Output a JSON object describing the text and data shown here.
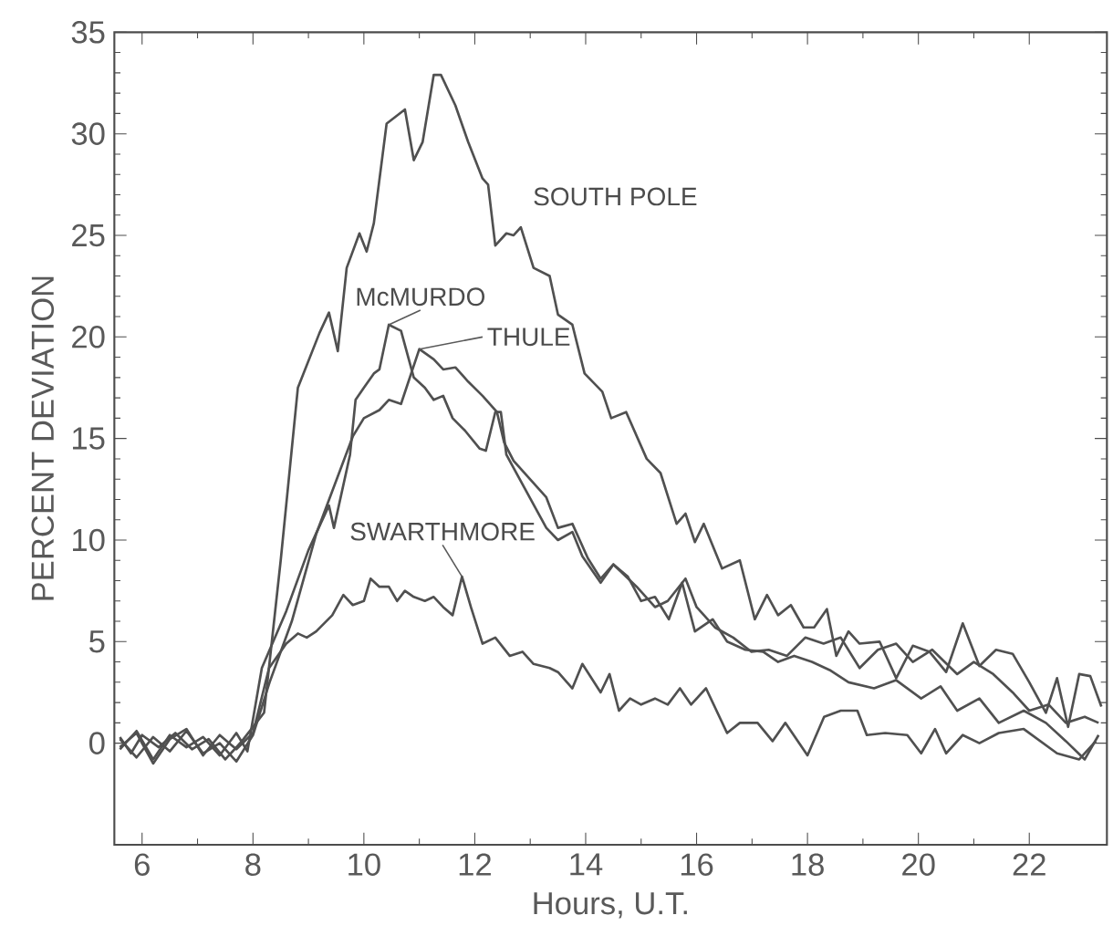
{
  "chart_data": {
    "type": "line",
    "xlabel": "Hours, U.T.",
    "ylabel": "PERCENT DEVIATION",
    "xlim": [
      5.5,
      23.4
    ],
    "ylim": [
      -5,
      35
    ],
    "xticks": [
      6,
      8,
      10,
      12,
      14,
      16,
      18,
      20,
      22
    ],
    "yticks": [
      0,
      5,
      10,
      15,
      20,
      25,
      30,
      35
    ],
    "series": [
      {
        "name": "SOUTH POLE",
        "color": "#505050",
        "x": [
          5.6,
          5.8,
          6.0,
          6.3,
          6.6,
          6.9,
          7.2,
          7.5,
          7.8,
          8.0,
          8.2,
          8.5,
          8.81,
          9.2,
          9.37,
          9.53,
          9.69,
          9.92,
          10.05,
          10.18,
          10.41,
          10.74,
          10.9,
          11.06,
          11.26,
          11.39,
          11.65,
          11.88,
          12.14,
          12.24,
          12.37,
          12.57,
          12.7,
          12.83,
          13.06,
          13.35,
          13.5,
          13.76,
          13.98,
          14.3,
          14.46,
          14.73,
          15.1,
          15.35,
          15.64,
          15.8,
          15.97,
          16.13,
          16.46,
          16.78,
          17.05,
          17.27,
          17.47,
          17.7,
          17.93,
          18.12,
          18.35,
          18.52,
          18.74,
          18.94,
          19.3,
          19.6,
          19.9,
          20.2,
          20.5,
          20.8,
          21.1,
          21.4,
          21.7,
          22.0,
          22.3,
          22.5,
          22.7,
          22.9,
          23.1,
          23.3
        ],
        "values": [
          0.3,
          -0.5,
          0.4,
          -0.2,
          0.5,
          -0.3,
          0.2,
          -0.8,
          0.1,
          0.8,
          1.5,
          9.0,
          17.5,
          20.2,
          21.2,
          19.3,
          23.4,
          25.1,
          24.2,
          25.6,
          30.5,
          31.2,
          28.7,
          29.6,
          32.9,
          32.9,
          31.4,
          29.6,
          27.8,
          27.5,
          24.5,
          25.1,
          25.0,
          25.4,
          23.4,
          23.0,
          21.1,
          20.6,
          18.2,
          17.3,
          16.0,
          16.3,
          14.0,
          13.3,
          10.8,
          11.3,
          9.9,
          10.8,
          8.6,
          9.0,
          6.1,
          7.3,
          6.3,
          6.8,
          5.7,
          5.7,
          6.6,
          4.3,
          5.5,
          4.9,
          5.0,
          3.2,
          4.8,
          4.5,
          3.5,
          5.9,
          3.8,
          4.6,
          4.4,
          3.0,
          1.5,
          3.2,
          0.8,
          3.4,
          3.3,
          1.8
        ]
      },
      {
        "name": "McMURDO",
        "color": "#505050",
        "x": [
          5.6,
          5.9,
          6.2,
          6.5,
          6.8,
          7.1,
          7.4,
          7.7,
          7.9,
          8.16,
          8.6,
          9.0,
          9.37,
          9.46,
          9.75,
          9.85,
          10.0,
          10.18,
          10.28,
          10.45,
          10.67,
          10.9,
          11.1,
          11.26,
          11.43,
          11.6,
          11.82,
          12.09,
          12.2,
          12.37,
          12.47,
          12.57,
          13.29,
          13.5,
          13.76,
          13.94,
          14.27,
          14.5,
          14.76,
          15.0,
          15.25,
          15.5,
          15.74,
          15.97,
          16.29,
          16.55,
          16.88,
          17.2,
          17.47,
          17.76,
          18.08,
          18.4,
          18.74,
          19.2,
          19.6,
          20.05,
          20.4,
          20.7,
          21.1,
          21.45,
          21.9,
          22.3,
          22.66,
          23.0,
          23.25
        ],
        "values": [
          -0.3,
          0.6,
          -0.8,
          0.4,
          -0.2,
          0.3,
          -0.6,
          0.5,
          -0.4,
          3.7,
          6.5,
          9.5,
          11.7,
          10.6,
          14.2,
          16.9,
          17.5,
          18.2,
          18.4,
          20.6,
          20.3,
          18.0,
          17.5,
          16.9,
          17.1,
          16.0,
          15.4,
          14.5,
          14.4,
          16.3,
          16.3,
          14.2,
          10.6,
          10.0,
          10.4,
          9.2,
          7.9,
          8.8,
          8.2,
          7.0,
          7.2,
          6.1,
          7.9,
          5.5,
          6.1,
          5.0,
          4.6,
          4.5,
          4.0,
          4.3,
          4.0,
          3.6,
          3.0,
          2.7,
          3.1,
          2.2,
          2.8,
          1.6,
          2.2,
          1.0,
          1.6,
          1.0,
          0.1,
          -0.8,
          0.4
        ]
      },
      {
        "name": "THULE",
        "color": "#505050",
        "x": [
          5.6,
          5.9,
          6.2,
          6.5,
          6.8,
          7.1,
          7.4,
          7.7,
          8.0,
          8.3,
          8.7,
          9.14,
          9.8,
          10.0,
          10.28,
          10.45,
          10.67,
          11.0,
          11.26,
          11.43,
          11.65,
          11.88,
          12.14,
          12.4,
          12.53,
          12.7,
          13.29,
          13.5,
          13.76,
          14.04,
          14.27,
          14.5,
          14.92,
          15.25,
          15.48,
          15.8,
          16.0,
          16.33,
          16.66,
          16.99,
          17.3,
          17.63,
          17.96,
          18.29,
          18.6,
          18.94,
          19.27,
          19.6,
          19.9,
          20.25,
          20.7,
          21.0,
          21.35,
          21.7,
          22.0,
          22.35,
          22.66,
          23.0,
          23.25
        ],
        "values": [
          0.2,
          -0.7,
          0.3,
          -0.4,
          0.6,
          -0.5,
          0.0,
          -0.9,
          0.4,
          3.0,
          6.0,
          10.3,
          15.1,
          16.0,
          16.4,
          16.9,
          16.7,
          19.4,
          18.9,
          18.4,
          18.5,
          17.8,
          17.1,
          16.3,
          14.8,
          13.9,
          12.1,
          10.6,
          10.8,
          9.1,
          8.1,
          8.8,
          7.7,
          6.7,
          7.0,
          8.1,
          6.7,
          5.7,
          5.2,
          4.5,
          4.6,
          4.3,
          5.2,
          4.9,
          5.2,
          3.7,
          4.6,
          4.9,
          4.0,
          4.6,
          3.4,
          4.0,
          3.4,
          2.5,
          1.6,
          1.9,
          1.0,
          1.3,
          1.0
        ]
      },
      {
        "name": "SWARTHMORE",
        "color": "#505050",
        "x": [
          5.6,
          5.9,
          6.2,
          6.5,
          6.8,
          7.1,
          7.4,
          7.7,
          8.0,
          8.29,
          8.6,
          8.81,
          8.97,
          9.14,
          9.43,
          9.63,
          9.8,
          10.0,
          10.12,
          10.28,
          10.45,
          10.6,
          10.74,
          10.9,
          11.1,
          11.26,
          11.43,
          11.6,
          11.77,
          11.93,
          12.14,
          12.37,
          12.63,
          12.86,
          13.06,
          13.35,
          13.5,
          13.76,
          13.94,
          14.27,
          14.43,
          14.6,
          14.8,
          15.0,
          15.25,
          15.48,
          15.7,
          15.9,
          16.17,
          16.55,
          16.78,
          17.1,
          17.37,
          17.6,
          18.0,
          18.3,
          18.6,
          18.9,
          19.07,
          19.4,
          19.8,
          20.05,
          20.3,
          20.5,
          20.8,
          21.1,
          21.45,
          21.9,
          22.2,
          22.5,
          22.9,
          23.2
        ],
        "values": [
          -0.2,
          0.5,
          -1.0,
          0.2,
          0.7,
          -0.6,
          0.4,
          -0.3,
          0.5,
          3.7,
          4.9,
          5.4,
          5.2,
          5.5,
          6.3,
          7.3,
          6.8,
          7.0,
          8.1,
          7.7,
          7.7,
          7.0,
          7.5,
          7.2,
          7.0,
          7.2,
          6.7,
          6.3,
          8.2,
          6.7,
          4.9,
          5.2,
          4.3,
          4.5,
          3.9,
          3.7,
          3.5,
          2.7,
          3.9,
          2.5,
          3.4,
          1.6,
          2.2,
          1.9,
          2.2,
          1.9,
          2.7,
          1.9,
          2.7,
          0.5,
          1.0,
          1.0,
          0.1,
          1.0,
          -0.6,
          1.3,
          1.6,
          1.6,
          0.4,
          0.5,
          0.4,
          -0.5,
          0.7,
          -0.5,
          0.4,
          0.0,
          0.5,
          0.7,
          0.1,
          -0.5,
          -0.8,
          0.1
        ]
      }
    ]
  }
}
